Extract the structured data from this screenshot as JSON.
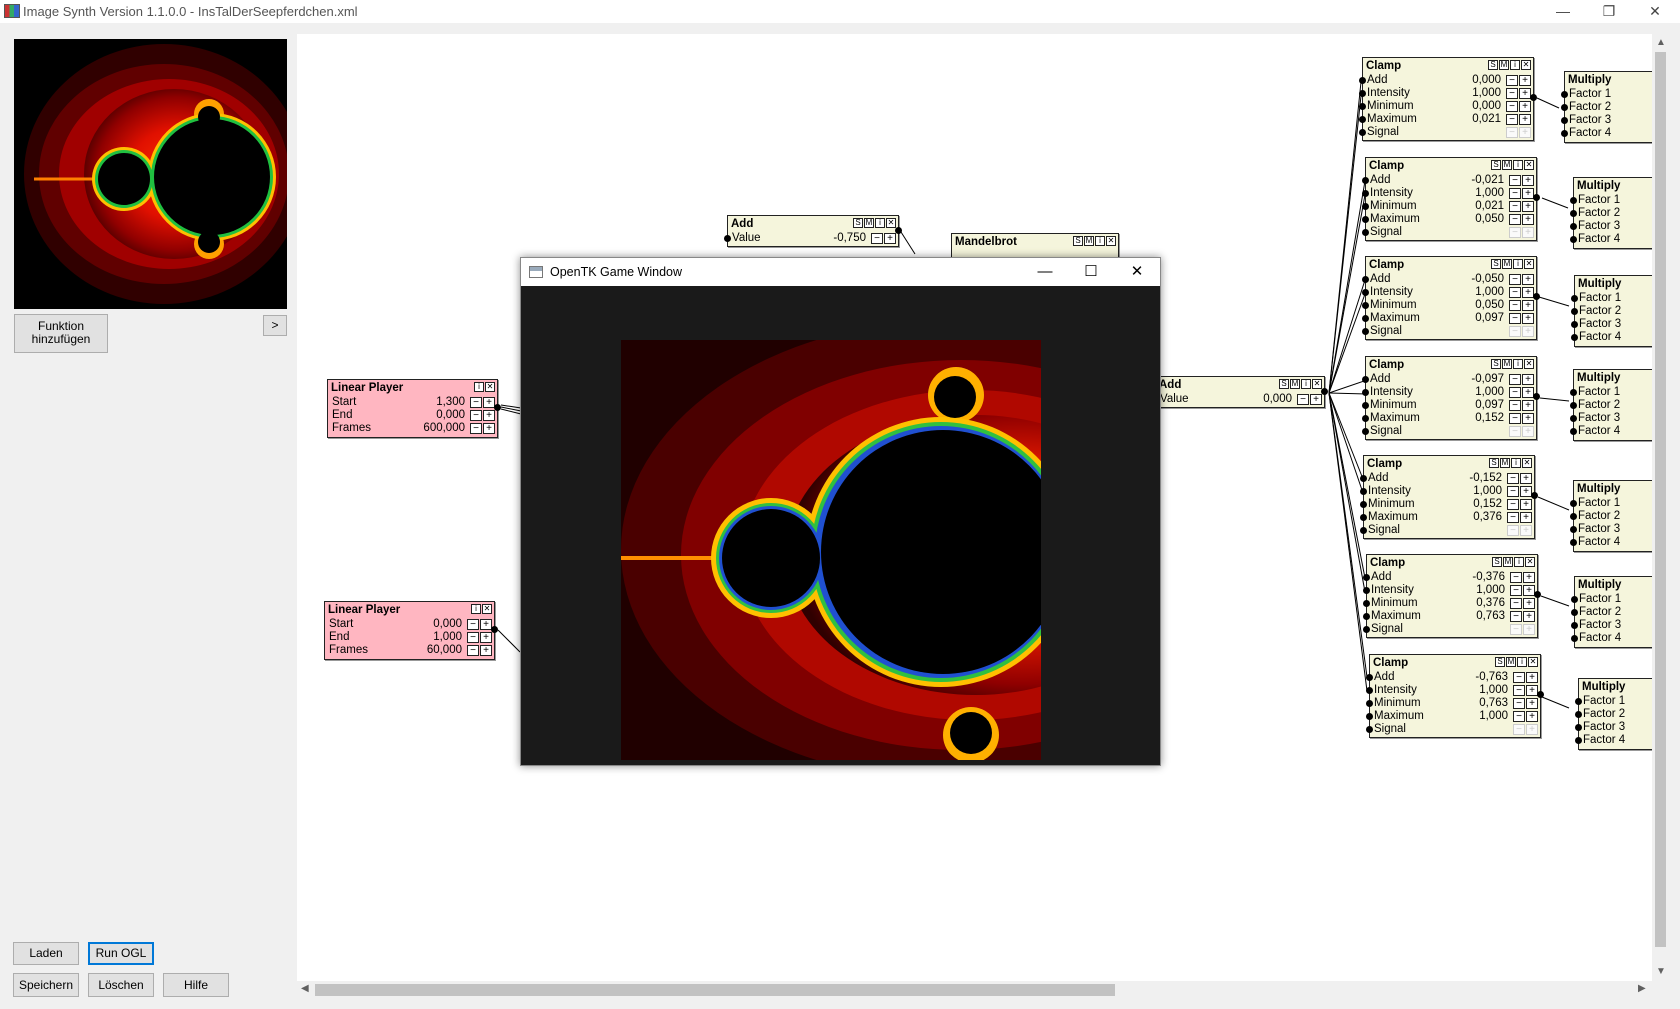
{
  "window": {
    "title": "Image Synth Version 1.1.0.0 - InsTalDerSeepferdchen.xml",
    "minimize": "—",
    "restore": "❐",
    "close": "✕"
  },
  "sidebar": {
    "add_function": "Funktion hinzufügen",
    "expand": ">",
    "load": "Laden",
    "run_ogl": "Run OGL",
    "save": "Speichern",
    "delete": "Löschen",
    "help": "Hilfe"
  },
  "node_ctl": {
    "s": "S",
    "m": "M",
    "i": "i",
    "x": "✕"
  },
  "spin": {
    "minus": "−",
    "plus": "+"
  },
  "nodes": {
    "add1": {
      "title": "Add",
      "value_label": "Value",
      "value": "-0,750"
    },
    "mandelbrot": {
      "title": "Mandelbrot"
    },
    "add2": {
      "title": "Add",
      "value_label": "Value",
      "value": "0,000"
    },
    "linear1": {
      "title": "Linear Player",
      "start_label": "Start",
      "start": "1,300",
      "end_label": "End",
      "end": "0,000",
      "frames_label": "Frames",
      "frames": "600,000"
    },
    "linear2": {
      "title": "Linear Player",
      "start_label": "Start",
      "start": "0,000",
      "end_label": "End",
      "end": "1,000",
      "frames_label": "Frames",
      "frames": "60,000"
    },
    "clamp_labels": {
      "title": "Clamp",
      "add": "Add",
      "intensity": "Intensity",
      "minimum": "Minimum",
      "maximum": "Maximum",
      "signal": "Signal"
    },
    "clamps": [
      {
        "add": "0,000",
        "intensity": "1,000",
        "minimum": "0,000",
        "maximum": "0,021"
      },
      {
        "add": "-0,021",
        "intensity": "1,000",
        "minimum": "0,021",
        "maximum": "0,050"
      },
      {
        "add": "-0,050",
        "intensity": "1,000",
        "minimum": "0,050",
        "maximum": "0,097"
      },
      {
        "add": "-0,097",
        "intensity": "1,000",
        "minimum": "0,097",
        "maximum": "0,152"
      },
      {
        "add": "-0,152",
        "intensity": "1,000",
        "minimum": "0,152",
        "maximum": "0,376"
      },
      {
        "add": "-0,376",
        "intensity": "1,000",
        "minimum": "0,376",
        "maximum": "0,763"
      },
      {
        "add": "-0,763",
        "intensity": "1,000",
        "minimum": "0,763",
        "maximum": "1,000"
      }
    ],
    "multiply_labels": {
      "title": "Multiply",
      "f1": "Factor 1",
      "f2": "Factor 2",
      "f3": "Factor 3",
      "f4": "Factor 4"
    }
  },
  "game_window": {
    "title": "OpenTK Game Window",
    "minimize": "—",
    "maximize": "☐",
    "close": "✕"
  },
  "colors": {
    "accent": "#0078d7",
    "node_bg": "#f5f5dc",
    "player_bg": "#ffb6c1"
  }
}
